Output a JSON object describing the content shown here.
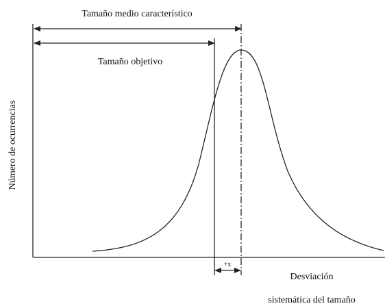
{
  "title_mean": "Tamaño medio característico",
  "title_target": "Tamaño objetivo",
  "y_axis_label": "Número de ocurrencias",
  "offset_label": "+x",
  "x_axis_label_line1": "Desviación",
  "x_axis_label_line2": "sistemática del tamaño"
}
